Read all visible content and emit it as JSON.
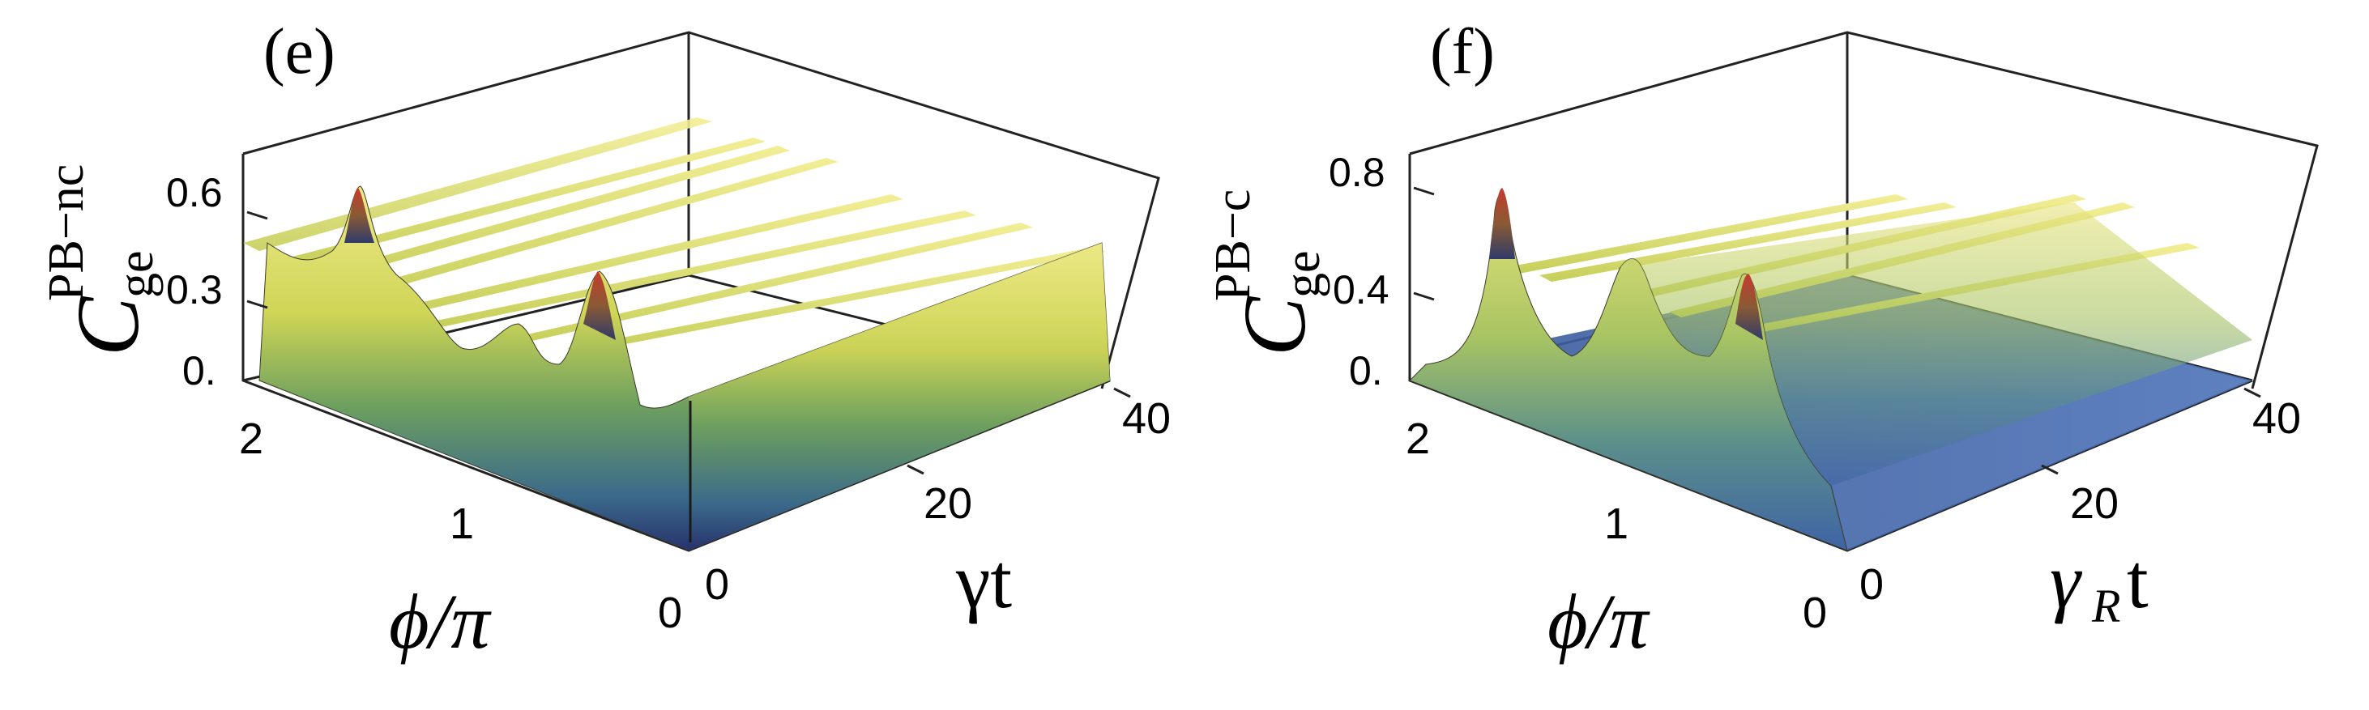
{
  "chart_data": [
    {
      "type": "surface",
      "panel_label": "(e)",
      "zlabel": {
        "base": "C",
        "superscript": "PB−nc",
        "subscript": "ge"
      },
      "xlabel": "ϕ/π",
      "ylabel": "γt",
      "x_ticks": [
        "0",
        "1",
        "2"
      ],
      "y_ticks": [
        "0",
        "20",
        "40"
      ],
      "z_ticks": [
        "0.",
        "0.3",
        "0.6"
      ],
      "xlim": [
        0,
        2
      ],
      "ylim": [
        0,
        40
      ],
      "zlim": [
        0,
        0.75
      ],
      "surface_profile_at_t0": {
        "phi_over_pi": [
          0,
          0.25,
          0.5,
          0.7,
          0.85,
          1.0,
          1.15,
          1.35,
          1.55,
          1.7,
          1.85,
          2.0
        ],
        "value": [
          0.0,
          0.28,
          0.6,
          0.42,
          0.32,
          0.4,
          0.45,
          0.34,
          0.42,
          0.7,
          0.48,
          0.5
        ]
      },
      "colormap": [
        "#2c3a78",
        "#3d6d8a",
        "#6fa05c",
        "#d7d94a",
        "#e8e27a",
        "#d24a3a"
      ]
    },
    {
      "type": "surface",
      "panel_label": "(f)",
      "zlabel": {
        "base": "C",
        "superscript": "PB−c",
        "subscript": "ge"
      },
      "xlabel": "ϕ/π",
      "ylabel": "γ",
      "ylabel_sub": "R",
      "ylabel_suffix": "t",
      "x_ticks": [
        "0",
        "1",
        "2"
      ],
      "y_ticks": [
        "0",
        "20",
        "40"
      ],
      "z_ticks": [
        "0.",
        "0.4",
        "0.8"
      ],
      "xlim": [
        0,
        2
      ],
      "ylim": [
        0,
        40
      ],
      "zlim": [
        0,
        0.85
      ],
      "surface_profile_at_t0": {
        "phi_over_pi": [
          0,
          0.2,
          0.45,
          0.6,
          0.75,
          1.0,
          1.25,
          1.4,
          1.55,
          1.8,
          1.9,
          2.0
        ],
        "value": [
          0.0,
          0.03,
          0.75,
          0.1,
          0.06,
          0.6,
          0.08,
          0.05,
          0.1,
          0.8,
          0.15,
          0.02
        ]
      },
      "colormap": [
        "#2c3a78",
        "#3d6d8a",
        "#6fa05c",
        "#d7d94a",
        "#e8e27a",
        "#d24a3a"
      ]
    }
  ]
}
